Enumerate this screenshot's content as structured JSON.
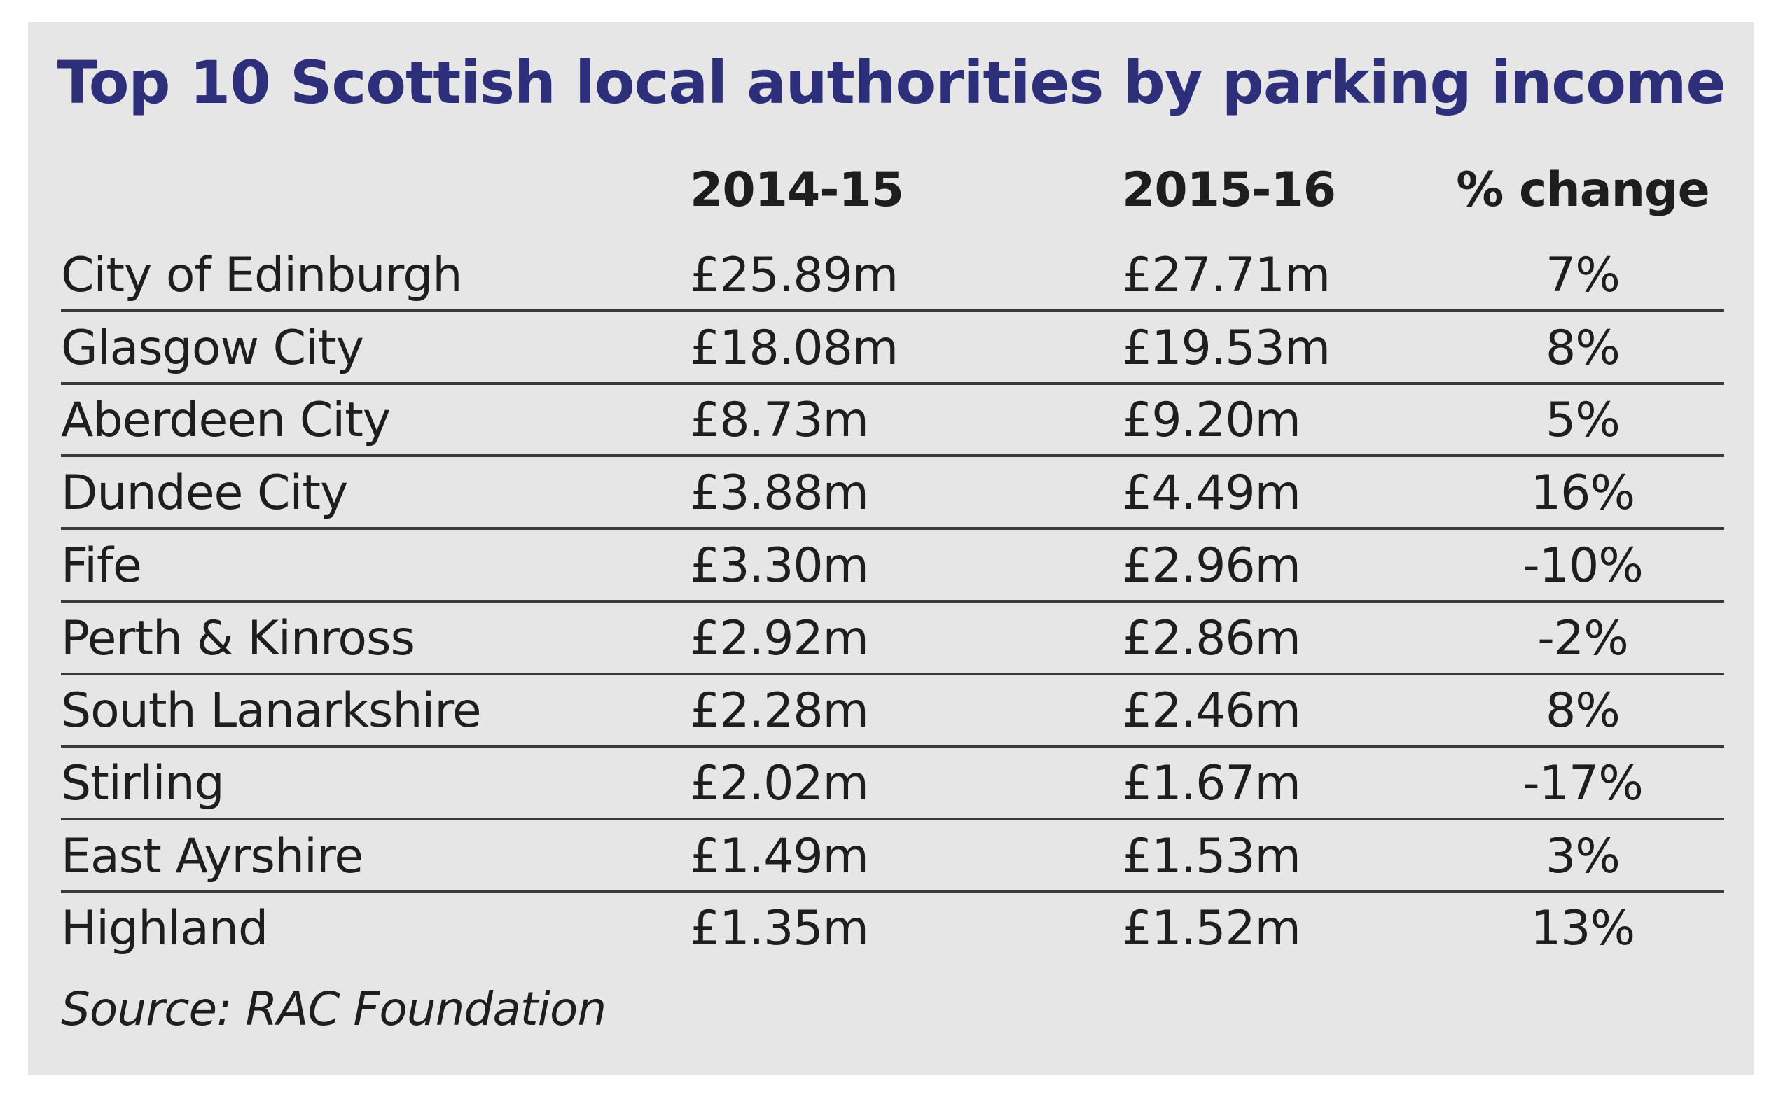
{
  "chart_data": {
    "type": "table",
    "title": "Top 10 Scottish local authorities by parking income",
    "columns": [
      "",
      "2014-15",
      "2015-16",
      "% change"
    ],
    "rows": [
      [
        "City of Edinburgh",
        "£25.89m",
        "£27.71m",
        "7%"
      ],
      [
        "Glasgow City",
        "£18.08m",
        "£19.53m",
        "8%"
      ],
      [
        "Aberdeen City",
        "£8.73m",
        "£9.20m",
        "5%"
      ],
      [
        "Dundee City",
        "£3.88m",
        "£4.49m",
        "16%"
      ],
      [
        "Fife",
        "£3.30m",
        "£2.96m",
        "-10%"
      ],
      [
        "Perth & Kinross",
        "£2.92m",
        "£2.86m",
        "-2%"
      ],
      [
        "South Lanarkshire",
        "£2.28m",
        "£2.46m",
        "8%"
      ],
      [
        "Stirling",
        "£2.02m",
        "£1.67m",
        "-17%"
      ],
      [
        "East Ayrshire",
        "£1.49m",
        "£1.53m",
        "3%"
      ],
      [
        "Highland",
        "£1.35m",
        "£1.52m",
        "13%"
      ]
    ],
    "source": "Source: RAC Foundation"
  },
  "colors": {
    "panel_background": "#e6e6e6",
    "title": "#2e2f7a",
    "text": "#1e1e1e",
    "rule": "#3a3a3a"
  }
}
